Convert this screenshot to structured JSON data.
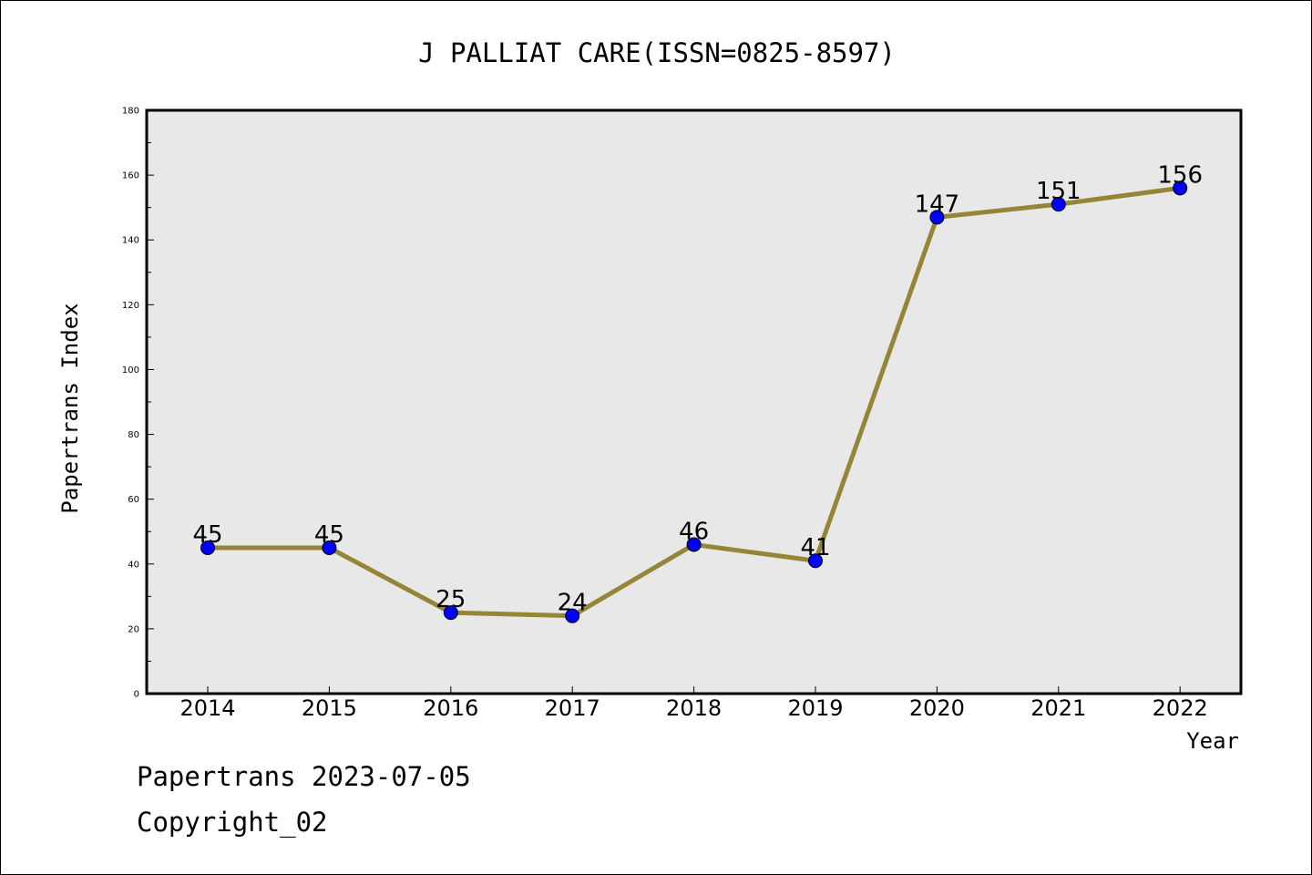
{
  "chart_data": {
    "type": "line",
    "title": "J PALLIAT CARE(ISSN=0825-8597)",
    "xlabel": "Year",
    "ylabel": "Papertrans Index",
    "categories": [
      "2014",
      "2015",
      "2016",
      "2017",
      "2018",
      "2019",
      "2020",
      "2021",
      "2022"
    ],
    "series": [
      {
        "values": [
          45,
          45,
          25,
          24,
          46,
          41,
          147,
          151,
          156
        ],
        "line_color": "#948537",
        "marker_color": "#0000ff"
      }
    ],
    "ylim": [
      0,
      180
    ],
    "yticks": [
      0,
      20,
      40,
      60,
      80,
      100,
      120,
      140,
      160,
      180
    ],
    "plot_background": "#e8e8e8",
    "grid": false,
    "legend": "none"
  },
  "footer": {
    "line1": "Papertrans 2023-07-05",
    "line2": "Copyright_02"
  }
}
